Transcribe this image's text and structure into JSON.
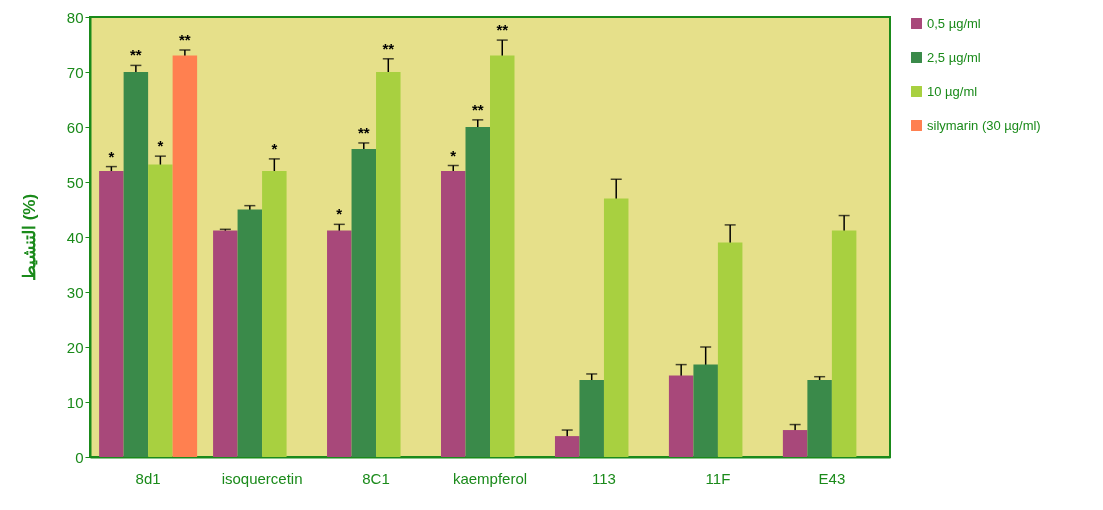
{
  "chart_data": {
    "type": "bar",
    "ylabel": "التنشيط (%)",
    "categories": [
      "8d1",
      "isoquercetin",
      "8C1",
      "kaempferol",
      "113",
      "11F",
      "E43"
    ],
    "ylim": [
      0,
      80
    ],
    "yticks": [
      0,
      10,
      20,
      30,
      40,
      50,
      60,
      70,
      80
    ],
    "grid": false,
    "legend": "right",
    "series": [
      {
        "name": "0,5 µg/ml",
        "color": "#a8487a",
        "values": [
          52,
          41.2,
          41.2,
          52,
          3.8,
          14.8,
          4.9
        ],
        "errors": [
          0.8,
          0.2,
          1.1,
          1,
          1.1,
          2,
          1
        ],
        "value_labels": [
          "*",
          null,
          "*",
          "*",
          null,
          null,
          null
        ]
      },
      {
        "name": "2,5 µg/ml",
        "color": "#3a8a4a",
        "values": [
          70,
          45,
          56,
          60,
          14,
          16.8,
          14
        ],
        "errors": [
          1.2,
          0.7,
          1.1,
          1.3,
          1.1,
          3.2,
          0.6
        ],
        "value_labels": [
          "**",
          null,
          "**",
          "**",
          null,
          null,
          null
        ]
      },
      {
        "name": "10 µg/ml",
        "color": "#a8d040",
        "values": [
          53.2,
          52,
          70,
          73,
          47,
          39,
          41.2
        ],
        "errors": [
          1.5,
          2.2,
          2.4,
          2.8,
          3.5,
          3.2,
          2.7
        ],
        "value_labels": [
          "*",
          "*",
          "**",
          "**",
          null,
          null,
          null
        ]
      },
      {
        "name": "silymarin (30 µg/ml)",
        "color": "#ff8050",
        "values": [
          73,
          null,
          null,
          null,
          null,
          null,
          null
        ],
        "errors": [
          1,
          null,
          null,
          null,
          null,
          null,
          null
        ],
        "value_labels": [
          "**",
          null,
          null,
          null,
          null,
          null,
          null
        ]
      }
    ]
  }
}
